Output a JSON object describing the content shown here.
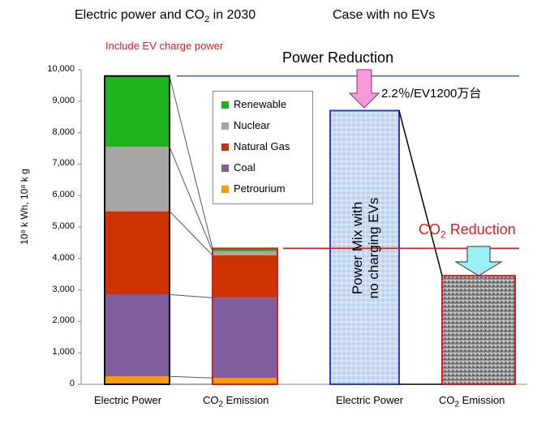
{
  "header": {
    "title_prefix": "Electric power and CO",
    "title_sub": "2",
    "title_suffix": " in 2030",
    "case": "Case with no EVs",
    "note": "Include EV charge power"
  },
  "annotations": {
    "power_reduction": "Power Reduction",
    "rate": "2.2％/EV1200万台",
    "co2_reduction_prefix": "CO",
    "co2_reduction_sub": "2",
    "co2_reduction_suffix": " Reduction",
    "mix_line1": "Power Mix with",
    "mix_line2": "no charging EVs"
  },
  "y_axis": {
    "label": "10⁸ k Wh,  10⁸ k g",
    "ticks": [
      "0",
      "1,000",
      "2,000",
      "3,000",
      "4,000",
      "5,000",
      "6,000",
      "7,000",
      "8,000",
      "9,000",
      "10,000"
    ]
  },
  "x_axis": {
    "cat1": "Electric Power",
    "cat2_prefix": "CO",
    "cat2_sub": "2",
    "cat2_suffix": " Emission",
    "cat3": "Electric Power",
    "cat4_prefix": "CO",
    "cat4_sub": "2",
    "cat4_suffix": " Emission"
  },
  "legend": [
    {
      "label": "Renewable",
      "color": "#1fb31f"
    },
    {
      "label": "Nuclear",
      "color": "#a6a6a6"
    },
    {
      "label": "Natural Gas",
      "color": "#cc3300"
    },
    {
      "label": "Coal",
      "color": "#7f5fa0"
    },
    {
      "label": "Petrourium",
      "color": "#ff9900"
    }
  ],
  "chart_data": {
    "type": "bar",
    "ylim": [
      0,
      10000
    ],
    "categories": [
      "Electric Power",
      "CO2 Emission",
      "Electric Power",
      "CO2 Emission"
    ],
    "series": [
      {
        "name": "Petrourium",
        "values": [
          250,
          200,
          null,
          null
        ]
      },
      {
        "name": "Coal",
        "values": [
          2600,
          2550,
          null,
          null
        ]
      },
      {
        "name": "Natural Gas",
        "values": [
          2650,
          1350,
          null,
          null
        ]
      },
      {
        "name": "Nuclear",
        "values": [
          2050,
          130,
          null,
          null
        ]
      },
      {
        "name": "Renewable",
        "values": [
          2250,
          90,
          null,
          null
        ]
      }
    ],
    "totals": [
      9800,
      4320,
      8700,
      3450
    ]
  }
}
